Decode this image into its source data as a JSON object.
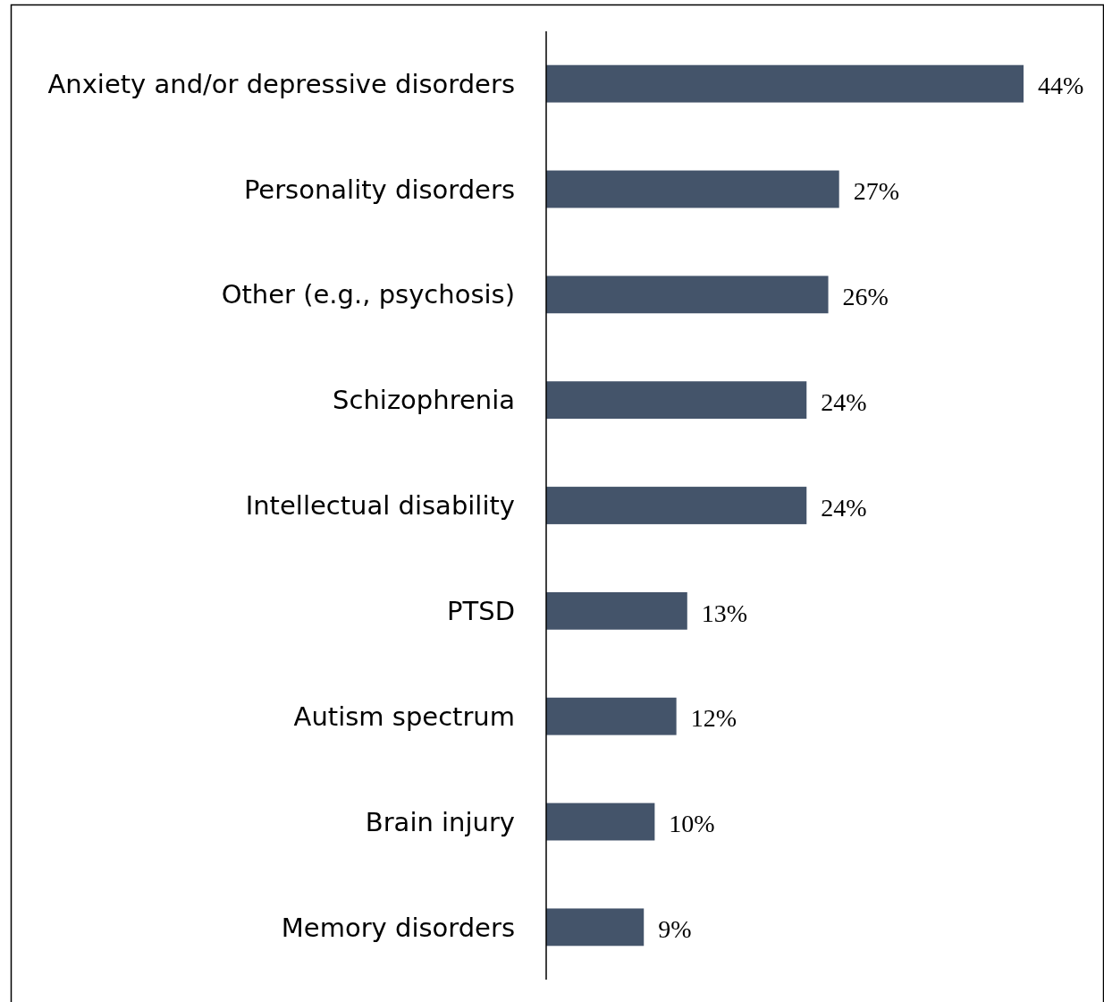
{
  "chart_data": {
    "type": "bar",
    "orientation": "horizontal",
    "categories": [
      "Anxiety and/or depressive disorders",
      "Personality disorders",
      "Other (e.g., psychosis)",
      "Schizophrenia",
      "Intellectual disability",
      "PTSD",
      "Autism spectrum",
      "Brain injury",
      "Memory disorders"
    ],
    "values": [
      44,
      27,
      26,
      24,
      24,
      13,
      12,
      10,
      9
    ],
    "value_labels": [
      "44%",
      "27%",
      "26%",
      "24%",
      "24%",
      "13%",
      "12%",
      "10%",
      "9%"
    ],
    "color": "#44546a"
  }
}
